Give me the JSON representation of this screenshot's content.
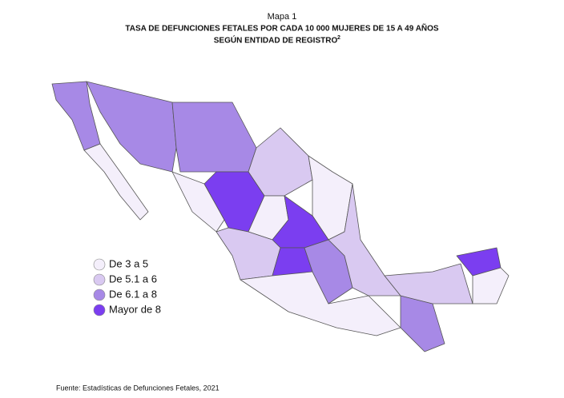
{
  "header": {
    "label": "Mapa 1",
    "title_line1": "TASA DE DEFUNCIONES FETALES POR CADA 10 000 MUJERES DE 15 A 49 AÑOS",
    "title_line2": "SEGÚN ENTIDAD DE REGISTRO",
    "footnote_ref": "2"
  },
  "legend": {
    "items": [
      {
        "label": "De 3 a 5",
        "color": "#f4effb"
      },
      {
        "label": "De 5.1 a 6",
        "color": "#d9c9f1"
      },
      {
        "label": "De 6.1 a 8",
        "color": "#a789e6"
      },
      {
        "label": "Mayor de 8",
        "color": "#7b3ef0"
      }
    ]
  },
  "source": "Fuente: Estadísticas de Defunciones Fetales, 2021"
}
